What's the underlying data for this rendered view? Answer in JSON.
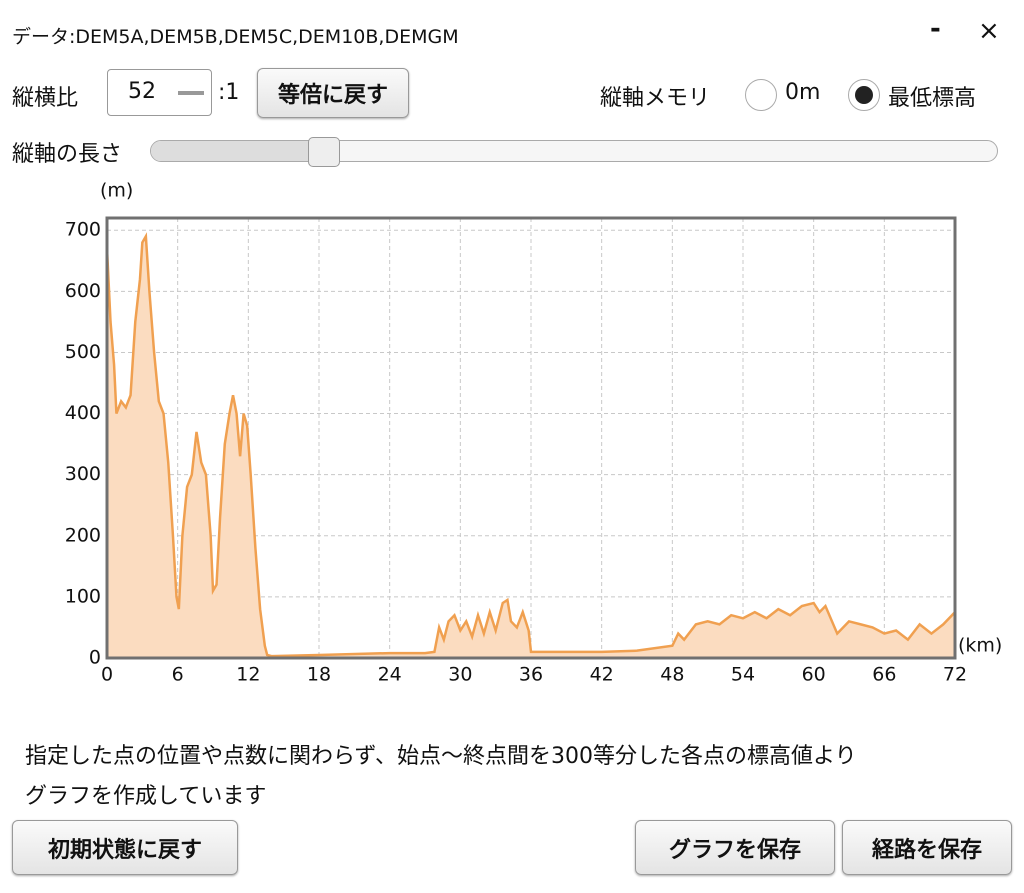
{
  "window": {
    "title": "データ:DEM5A,DEM5B,DEM5C,DEM10B,DEMGM",
    "minimize": "-",
    "close": "×"
  },
  "controls": {
    "aspect_label": "縦横比",
    "aspect_value": "52",
    "aspect_suffix": ":1",
    "reset_aspect": "等倍に戻す",
    "axis_scale_label": "縦軸メモリ",
    "radio_zero": "0m",
    "radio_min": "最低標高",
    "axis_length_label": "縦軸の長さ"
  },
  "chart_data": {
    "type": "area",
    "y_unit": "(m)",
    "x_unit": "(km)",
    "x": [
      0,
      0.3,
      0.6,
      0.8,
      1.2,
      1.6,
      2.0,
      2.4,
      2.8,
      3.0,
      3.3,
      3.6,
      4.0,
      4.4,
      4.8,
      5.2,
      5.6,
      5.9,
      6.1,
      6.4,
      6.8,
      7.2,
      7.6,
      8.0,
      8.4,
      8.8,
      9.0,
      9.3,
      9.6,
      10.0,
      10.4,
      10.7,
      11.0,
      11.3,
      11.6,
      11.9,
      12.2,
      12.6,
      13.0,
      13.4,
      13.6,
      14,
      18,
      24,
      27,
      27.8,
      28.2,
      28.6,
      29.0,
      29.5,
      30,
      30.5,
      31,
      31.5,
      32,
      32.5,
      33,
      33.6,
      34,
      34.3,
      34.8,
      35.3,
      35.8,
      36,
      38,
      42,
      45,
      48,
      48.5,
      49,
      50,
      51,
      52,
      53,
      54,
      55,
      56,
      57,
      58,
      59,
      60,
      60.5,
      61,
      62,
      63,
      64,
      65,
      66,
      67,
      68,
      69,
      70,
      71,
      72
    ],
    "series": [
      {
        "name": "elevation",
        "color": "#f0a050",
        "fill": "#fbdcc0",
        "values": [
          670,
          550,
          480,
          400,
          420,
          410,
          430,
          550,
          620,
          680,
          690,
          600,
          500,
          420,
          400,
          320,
          200,
          100,
          80,
          200,
          280,
          300,
          370,
          320,
          300,
          200,
          110,
          120,
          230,
          350,
          400,
          430,
          400,
          330,
          400,
          380,
          300,
          180,
          80,
          20,
          5,
          3,
          5,
          8,
          8,
          10,
          50,
          30,
          60,
          70,
          45,
          60,
          35,
          70,
          40,
          75,
          45,
          90,
          95,
          60,
          50,
          75,
          45,
          10,
          10,
          10,
          12,
          20,
          40,
          30,
          55,
          60,
          55,
          70,
          65,
          75,
          65,
          80,
          70,
          85,
          90,
          75,
          85,
          40,
          60,
          55,
          50,
          40,
          45,
          30,
          55,
          40,
          55,
          75
        ]
      }
    ],
    "xlim": [
      0,
      72
    ],
    "xticks": [
      0,
      6,
      12,
      18,
      24,
      30,
      36,
      42,
      48,
      54,
      60,
      66,
      72
    ],
    "ylim": [
      0,
      720
    ],
    "yticks": [
      0,
      100,
      200,
      300,
      400,
      500,
      600,
      700
    ],
    "grid": true
  },
  "note": [
    "指定した点の位置や点数に関わらず、始点～終点間を300等分した各点の標高値より",
    "グラフを作成しています"
  ],
  "buttons": {
    "reset_all": "初期状態に戻す",
    "save_graph": "グラフを保存",
    "save_route": "経路を保存"
  }
}
